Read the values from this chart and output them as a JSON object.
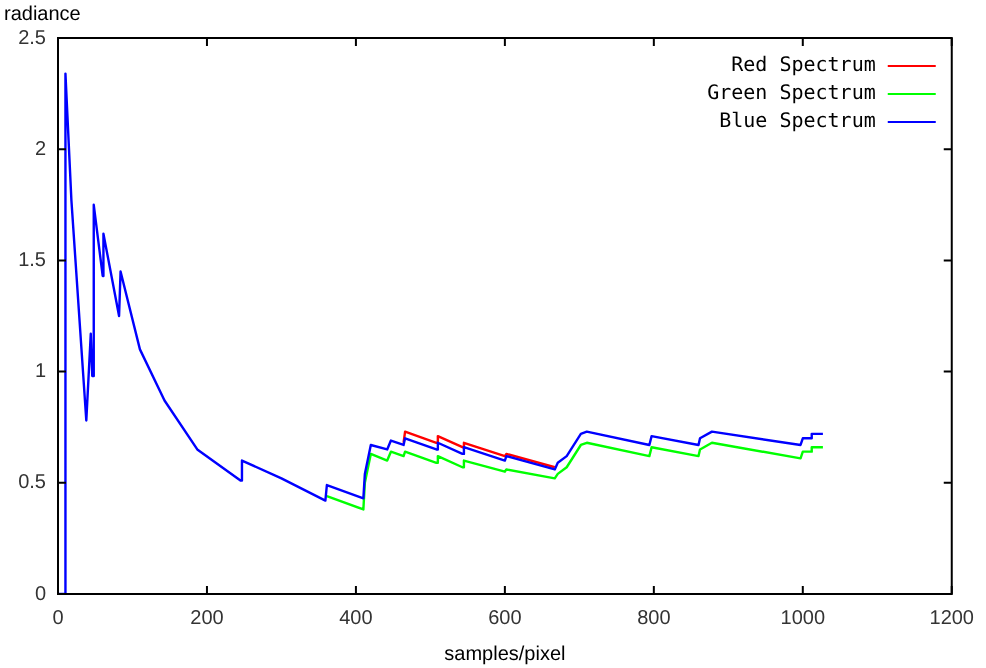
{
  "chart_data": {
    "type": "line",
    "xlabel": "samples/pixel",
    "ylabel": "radiance",
    "x": [
      0,
      9,
      10,
      18,
      38,
      44,
      46,
      48,
      60,
      61,
      82,
      84,
      110,
      143,
      187,
      245,
      247,
      300,
      359,
      361,
      410,
      412,
      420,
      442,
      447,
      464,
      466,
      508,
      510,
      543,
      545,
      600,
      602,
      667,
      671,
      683,
      702,
      710,
      794,
      797,
      860,
      862,
      878,
      997,
      1000,
      1010,
      1012,
      1027
    ],
    "series": [
      {
        "name": "Red Spectrum",
        "color": "#ff0000",
        "values": [
          null,
          null,
          null,
          null,
          null,
          null,
          null,
          null,
          null,
          null,
          null,
          null,
          null,
          null,
          null,
          null,
          null,
          null,
          null,
          null,
          null,
          null,
          null,
          null,
          null,
          0.68,
          0.73,
          0.68,
          0.71,
          0.66,
          0.68,
          0.62,
          0.63,
          0.57,
          null,
          null,
          null,
          null,
          null,
          null,
          null,
          null,
          null,
          null,
          null,
          null,
          null,
          null
        ]
      },
      {
        "name": "Green Spectrum",
        "color": "#00ff00",
        "values": [
          null,
          null,
          null,
          null,
          null,
          null,
          null,
          null,
          null,
          null,
          null,
          null,
          null,
          null,
          null,
          null,
          null,
          null,
          null,
          0.44,
          0.38,
          0.5,
          0.63,
          0.6,
          0.64,
          0.62,
          0.64,
          0.59,
          0.62,
          0.57,
          0.6,
          0.55,
          0.56,
          0.52,
          0.54,
          0.57,
          0.67,
          0.68,
          0.62,
          0.66,
          0.62,
          0.65,
          0.68,
          0.61,
          0.64,
          0.64,
          0.66,
          0.66
        ]
      },
      {
        "name": "Blue Spectrum",
        "color": "#0000ff",
        "values": [
          0,
          0,
          2.34,
          1.77,
          0.78,
          1.17,
          0.98,
          1.75,
          1.43,
          1.62,
          1.25,
          1.45,
          1.1,
          0.87,
          0.65,
          0.51,
          0.6,
          0.52,
          0.42,
          0.49,
          0.43,
          0.54,
          0.67,
          0.65,
          0.69,
          0.67,
          0.7,
          0.65,
          0.68,
          0.63,
          0.66,
          0.6,
          0.62,
          0.56,
          0.59,
          0.62,
          0.72,
          0.73,
          0.67,
          0.71,
          0.67,
          0.7,
          0.73,
          0.67,
          0.7,
          0.7,
          0.72,
          0.72
        ]
      }
    ],
    "xlim": [
      0,
      1200
    ],
    "xticks": [
      0,
      200,
      400,
      600,
      800,
      1000,
      1200
    ],
    "ylim": [
      0,
      2.5
    ],
    "yticks": [
      0,
      0.5,
      1,
      1.5,
      2,
      2.5
    ],
    "grid": false,
    "legend": "top right",
    "marker": "none",
    "line_style": "solid"
  }
}
